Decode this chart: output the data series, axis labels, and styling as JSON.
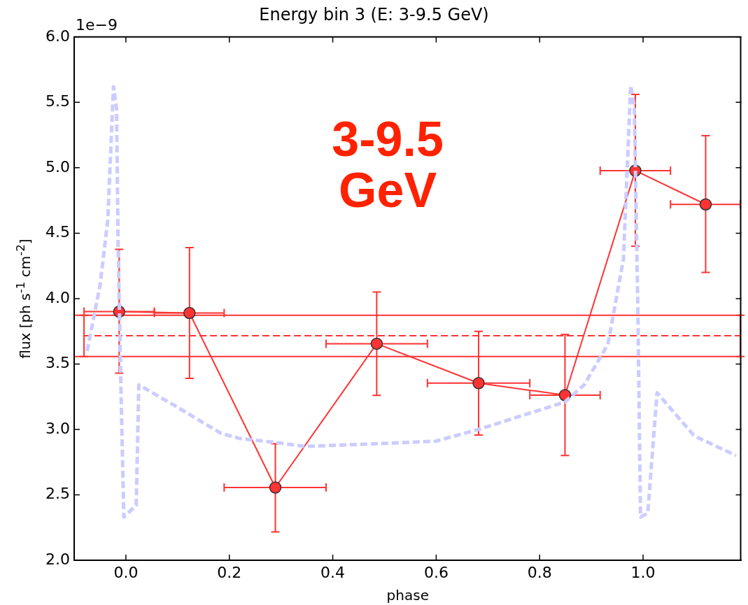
{
  "chart_data": {
    "type": "line",
    "title": "Energy bin 3 (E: 3-9.5 GeV)",
    "xlabel": "phase",
    "ylabel": "flux [ph s$^{-1}$ cm$^{-2}$]",
    "annotations": [
      "1e−9",
      "3-9.5 GeV"
    ],
    "xlim": [
      -0.1,
      1.19
    ],
    "xticks": [
      {
        "value": 0,
        "label": "0.0"
      },
      {
        "value": 0.2,
        "label": "0.2"
      },
      {
        "value": 0.4,
        "label": "0.4"
      },
      {
        "value": 0.6,
        "label": "0.6"
      },
      {
        "value": 0.8,
        "label": "0.8"
      },
      {
        "value": 1,
        "label": "1.0"
      }
    ],
    "ylim": [
      2,
      6
    ],
    "yticks": [
      {
        "value": 2,
        "label": "2.0"
      },
      {
        "value": 2.5,
        "label": "2.5"
      },
      {
        "value": 3,
        "label": "3.0"
      },
      {
        "value": 3.5,
        "label": "3.5"
      },
      {
        "value": 4,
        "label": "4.0"
      },
      {
        "value": 4.5,
        "label": "4.5"
      },
      {
        "value": 5,
        "label": "5.0"
      },
      {
        "value": 5.5,
        "label": "5.5"
      },
      {
        "value": 6,
        "label": "6.0"
      }
    ],
    "grid": false,
    "legend": false,
    "series": [
      {
        "color": "#ccccff",
        "line_style": "dashed",
        "marker": "none",
        "x": [
          -0.075,
          -0.05,
          -0.035,
          -0.024,
          -0.018,
          -0.015,
          -0.01,
          -0.004,
          0.02,
          0.025,
          0.091,
          0.184,
          0.221,
          0.29,
          0.346,
          0.48,
          0.599,
          0.682,
          0.849,
          0.886,
          0.932,
          0.962,
          0.976,
          0.983,
          0.99,
          0.995,
          1.009,
          1.027,
          1.099,
          1.18
        ],
        "values": [
          3.6,
          4.1,
          4.6,
          5.62,
          5.45,
          4.4,
          3.4,
          2.33,
          2.42,
          3.34,
          3.19,
          2.97,
          2.93,
          2.9,
          2.87,
          2.89,
          2.91,
          3.0,
          3.21,
          3.34,
          3.65,
          4.3,
          5.63,
          5.47,
          3.89,
          2.33,
          2.36,
          3.28,
          2.95,
          2.8
        ]
      },
      {
        "color": "#ff3333",
        "line_style": "dashed",
        "marker": "none",
        "x": [
          -0.081,
          1.188
        ],
        "values": [
          3.716,
          3.716
        ],
        "errors": [
          [
            3.557,
            3.873
          ],
          [
            3.557,
            3.873
          ]
        ]
      },
      {
        "color": "#ff3333",
        "line_style": "solid",
        "marker": "circle",
        "x": [
          -0.013,
          0.123,
          0.289,
          0.485,
          0.682,
          0.849,
          0.985,
          1.121
        ],
        "values": [
          3.9,
          3.89,
          2.556,
          3.655,
          3.354,
          3.262,
          4.978,
          4.72
        ],
        "errors": [
          [
            3.43,
            4.376
          ],
          [
            3.39,
            4.39
          ],
          [
            2.217,
            2.89
          ],
          [
            3.26,
            4.05
          ],
          [
            2.957,
            3.75
          ],
          [
            2.8,
            3.725
          ],
          [
            4.4,
            5.56
          ],
          [
            4.2,
            5.245
          ]
        ],
        "xerrors": [
          [
            -0.081,
            0.055
          ],
          [
            0.055,
            0.19
          ],
          [
            0.19,
            0.387
          ],
          [
            0.387,
            0.583
          ],
          [
            0.583,
            0.781
          ],
          [
            0.781,
            0.917
          ],
          [
            0.917,
            1.053
          ],
          [
            1.053,
            1.188
          ]
        ]
      }
    ],
    "ref_lines": [
      {
        "axis": "y",
        "value": 3.873,
        "color": "#ff3333",
        "line_style": "solid"
      },
      {
        "axis": "y",
        "value": 3.557,
        "color": "#ff3333",
        "line_style": "solid"
      }
    ]
  }
}
